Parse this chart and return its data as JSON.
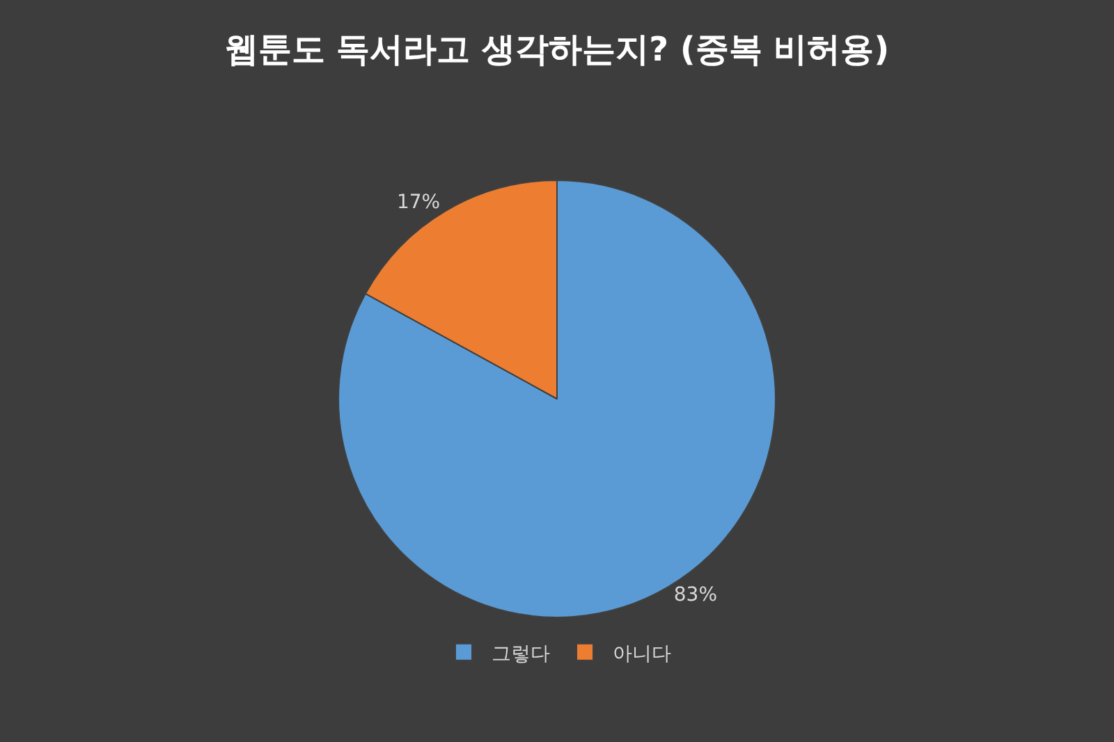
{
  "chart_data": {
    "type": "pie",
    "title": "웹툰도 독서라고 생각하는지? (중복 비허용)",
    "categories": [
      "그렇다",
      "아니다"
    ],
    "values": [
      83,
      17
    ],
    "colors": [
      "#5b9bd5",
      "#ed7d31"
    ],
    "value_labels": [
      "83%",
      "17%"
    ],
    "legend": "bottom"
  }
}
